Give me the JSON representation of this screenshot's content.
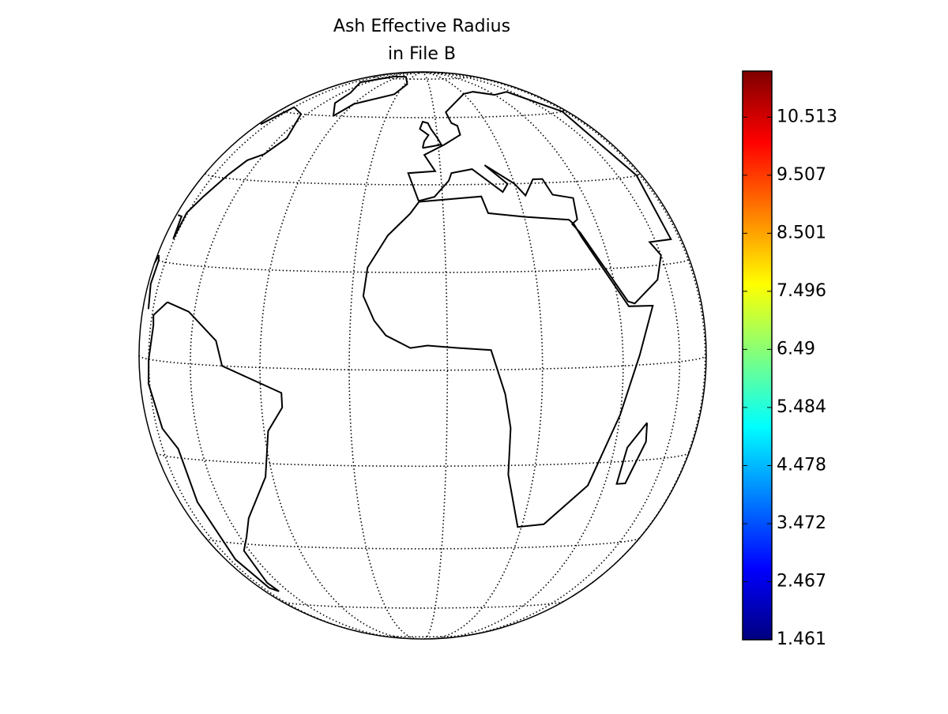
{
  "title": [
    "Ash Effective Radius",
    "in File B"
  ],
  "colorbar": {
    "range": [
      1.461,
      11.31
    ],
    "ticks": [
      1.461,
      2.467,
      3.472,
      4.478,
      5.484,
      6.49,
      7.496,
      8.501,
      9.507,
      10.513
    ],
    "colors": [
      "#00007f",
      "#0000ff",
      "#007fff",
      "#00ffff",
      "#7fff7f",
      "#ffff00",
      "#ff7f00",
      "#ff0000",
      "#7f0000"
    ]
  }
}
